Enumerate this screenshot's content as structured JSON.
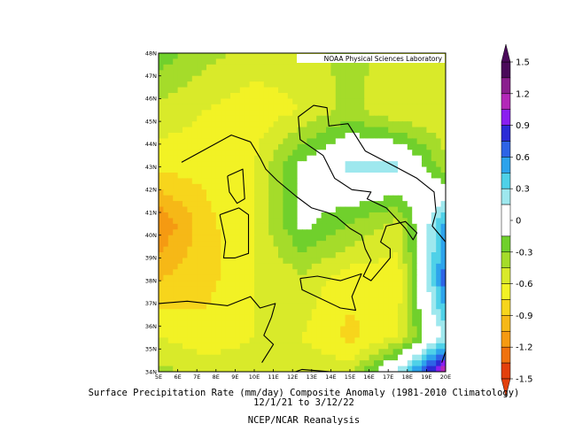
{
  "chart_data": {
    "type": "heatmap",
    "title": "Surface Precipitation Rate (mm/day) Composite Anomaly (1981-2010 Climatology)",
    "subtitle": "12/1/21  to 3/12/22",
    "source": "NCEP/NCAR Reanalysis",
    "credit": "NOAA Physical Sciences Laboratory",
    "x_ticks": [
      "5E",
      "6E",
      "7E",
      "8E",
      "9E",
      "10E",
      "11E",
      "12E",
      "13E",
      "14E",
      "15E",
      "16E",
      "17E",
      "18E",
      "19E",
      "20E"
    ],
    "y_ticks": [
      "34N",
      "35N",
      "36N",
      "37N",
      "38N",
      "39N",
      "40N",
      "41N",
      "42N",
      "43N",
      "44N",
      "45N",
      "46N",
      "47N",
      "48N"
    ],
    "xlim": [
      5,
      20
    ],
    "ylim": [
      34,
      48
    ],
    "colorbar": {
      "labels": [
        "1.5",
        "1.2",
        "0.9",
        "0.6",
        "0.3",
        "0",
        "-0.3",
        "-0.6",
        "-0.9",
        "-1.2",
        "-1.5"
      ],
      "bands": [
        {
          "from": 1.35,
          "to": 1.5,
          "color": "#4a0a5a"
        },
        {
          "from": 1.2,
          "to": 1.35,
          "color": "#8a1f8e"
        },
        {
          "from": 1.05,
          "to": 1.2,
          "color": "#b328b8"
        },
        {
          "from": 0.9,
          "to": 1.05,
          "color": "#8a1ff0"
        },
        {
          "from": 0.75,
          "to": 0.9,
          "color": "#2b2bd6"
        },
        {
          "from": 0.6,
          "to": 0.75,
          "color": "#2d64e6"
        },
        {
          "from": 0.45,
          "to": 0.6,
          "color": "#2da3ec"
        },
        {
          "from": 0.3,
          "to": 0.45,
          "color": "#4fd1e8"
        },
        {
          "from": 0.15,
          "to": 0.3,
          "color": "#9ee8ee"
        },
        {
          "from": -0.15,
          "to": 0.15,
          "color": "#ffffff"
        },
        {
          "from": -0.3,
          "to": -0.15,
          "color": "#70d02c"
        },
        {
          "from": -0.45,
          "to": -0.3,
          "color": "#a5dc2a"
        },
        {
          "from": -0.6,
          "to": -0.45,
          "color": "#d9ea2a"
        },
        {
          "from": -0.75,
          "to": -0.6,
          "color": "#f2f225"
        },
        {
          "from": -0.9,
          "to": -0.75,
          "color": "#f7d51c"
        },
        {
          "from": -1.05,
          "to": -0.9,
          "color": "#f6b817"
        },
        {
          "from": -1.2,
          "to": -1.05,
          "color": "#f59a12"
        },
        {
          "from": -1.35,
          "to": -1.2,
          "color": "#f0720e"
        },
        {
          "from": -1.5,
          "to": -1.35,
          "color": "#e3400c"
        }
      ]
    },
    "field": {
      "lon": [
        5,
        7.5,
        10,
        12.5,
        15,
        17.5,
        20
      ],
      "lat": [
        48,
        45.5,
        43,
        40.5,
        38,
        35.5,
        34
      ],
      "values": [
        [
          -0.2,
          -0.4,
          -0.5,
          -0.5,
          -0.4,
          -0.5,
          -0.6
        ],
        [
          -0.5,
          -0.6,
          -0.7,
          -0.6,
          -0.4,
          -0.6,
          -0.6
        ],
        [
          -0.7,
          -0.7,
          -0.6,
          -0.1,
          0.2,
          0.2,
          -0.4
        ],
        [
          -1.2,
          -0.8,
          -0.6,
          -0.1,
          -0.3,
          -0.5,
          0.5
        ],
        [
          -0.9,
          -0.8,
          -0.6,
          -0.5,
          -0.7,
          -0.7,
          0.7
        ],
        [
          -0.6,
          -0.7,
          -0.6,
          -0.6,
          -0.8,
          -0.6,
          0.2
        ],
        [
          -0.4,
          -0.5,
          -0.5,
          -0.5,
          -0.5,
          0.2,
          1.2
        ]
      ]
    }
  }
}
